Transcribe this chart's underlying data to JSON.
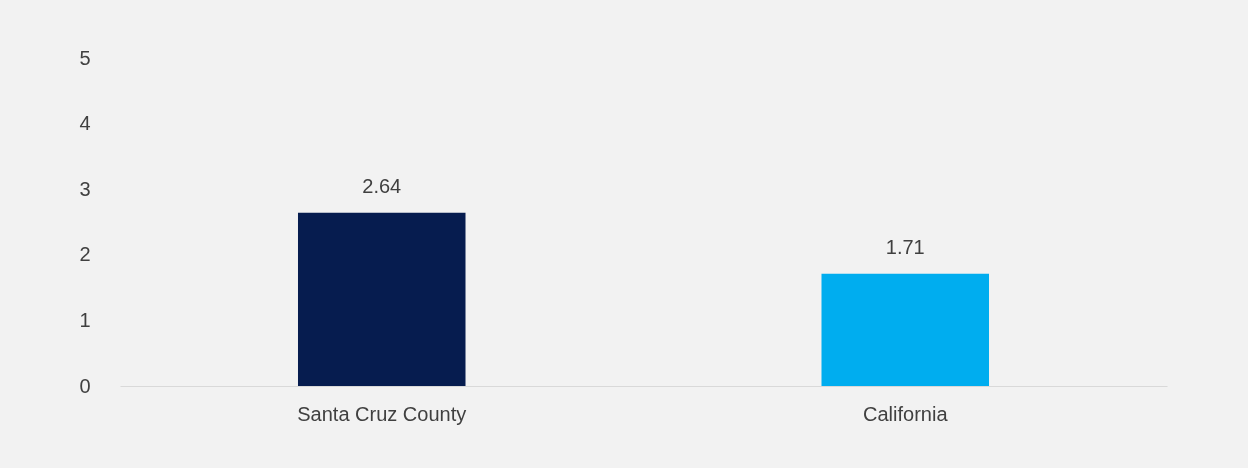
{
  "chart_data": {
    "type": "bar",
    "categories": [
      "Santa Cruz County",
      "California"
    ],
    "values": [
      2.64,
      1.71
    ],
    "colors": [
      "#061c4f",
      "#00adef"
    ],
    "ylim": [
      0,
      5
    ],
    "yticks": [
      0,
      1,
      2,
      3,
      4,
      5
    ],
    "grid": false,
    "data_labels": true
  }
}
